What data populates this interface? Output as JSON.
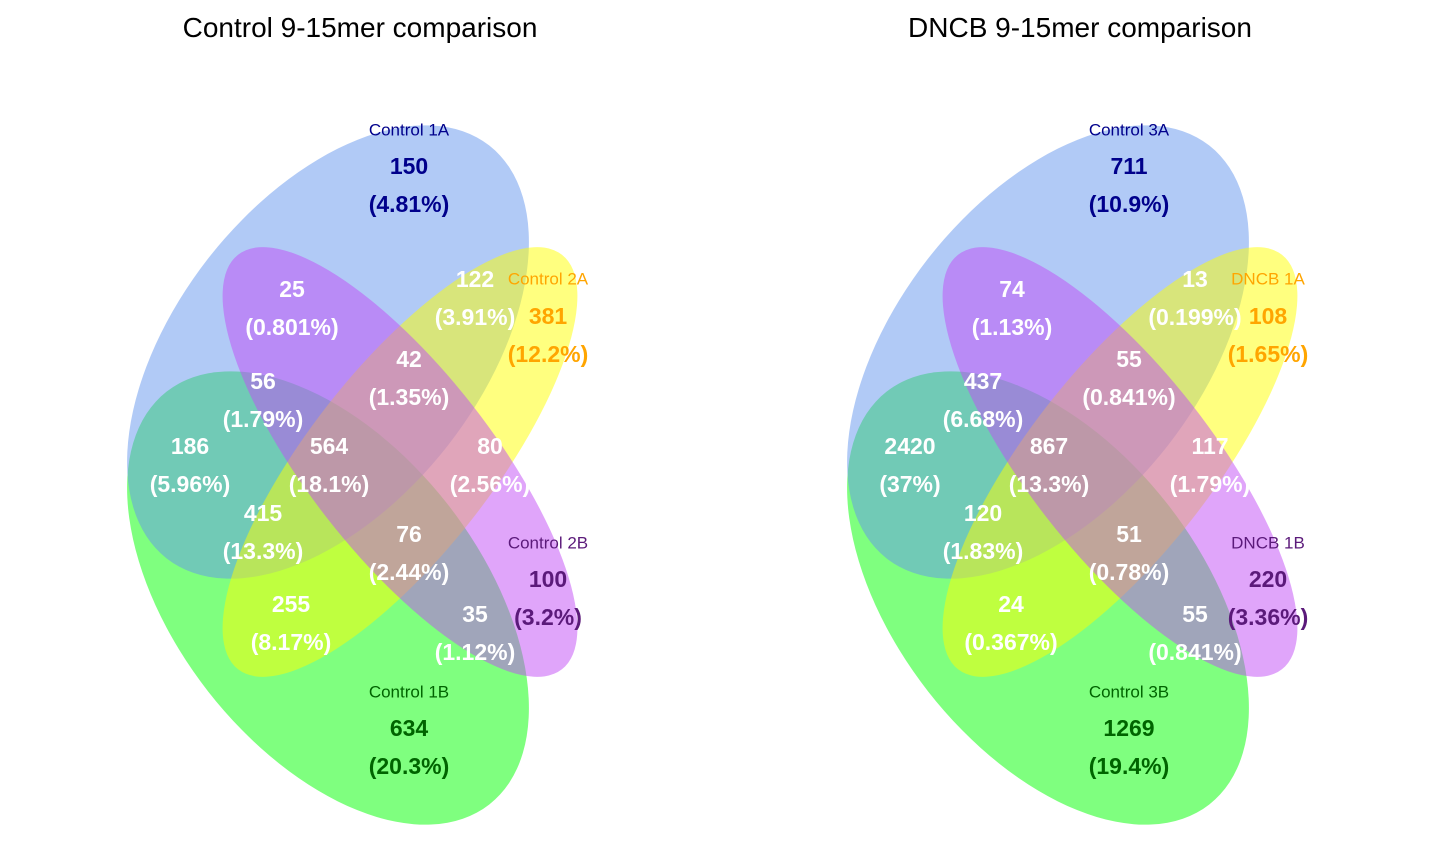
{
  "colors": {
    "set_top": "#6495ED",
    "set_right_top": "#FFFF00",
    "set_left_bottom": "#00FF00",
    "set_right_bottom": "#C14BF5",
    "label_top": "#00008B",
    "label_right_top": "#FFA500",
    "label_left_bottom": "#006400",
    "label_right_bottom": "#5B1A7A",
    "inner_text": "#FFFFFF"
  },
  "diagrams": [
    {
      "title": "Control 9-15mer comparison",
      "sets": {
        "top": "Control 1A",
        "right_top": "Control 2A",
        "left_bottom": "Control 1B",
        "right_bottom": "Control 2B"
      },
      "regions": {
        "only_top": [
          "150",
          "(4.81%)"
        ],
        "only_right_top": [
          "381",
          "(12.2%)"
        ],
        "only_left_bottom": [
          "634",
          "(20.3%)"
        ],
        "only_right_bottom": [
          "100",
          "(3.2%)"
        ],
        "purple_upper": [
          "25",
          "(0.801%)"
        ],
        "yellow_upper": [
          "122",
          "(3.91%)"
        ],
        "center_upper": [
          "42",
          "(1.35%)"
        ],
        "teal_only": [
          "186",
          "(5.96%)"
        ],
        "teal_purple": [
          "56",
          "(1.79%)"
        ],
        "center": [
          "564",
          "(18.1%)"
        ],
        "right_mid": [
          "80",
          "(2.56%)"
        ],
        "left_lower": [
          "415",
          "(13.3%)"
        ],
        "center_lower": [
          "76",
          "(2.44%)"
        ],
        "lime": [
          "255",
          "(8.17%)"
        ],
        "slate": [
          "35",
          "(1.12%)"
        ]
      }
    },
    {
      "title": "DNCB 9-15mer comparison",
      "sets": {
        "top": "Control 3A",
        "right_top": "DNCB 1A",
        "left_bottom": "Control 3B",
        "right_bottom": "DNCB 1B"
      },
      "regions": {
        "only_top": [
          "711",
          "(10.9%)"
        ],
        "only_right_top": [
          "108",
          "(1.65%)"
        ],
        "only_left_bottom": [
          "1269",
          "(19.4%)"
        ],
        "only_right_bottom": [
          "220",
          "(3.36%)"
        ],
        "purple_upper": [
          "74",
          "(1.13%)"
        ],
        "yellow_upper": [
          "13",
          "(0.199%)"
        ],
        "center_upper": [
          "55",
          "(0.841%)"
        ],
        "teal_only": [
          "2420",
          "(37%)"
        ],
        "teal_purple": [
          "437",
          "(6.68%)"
        ],
        "center": [
          "867",
          "(13.3%)"
        ],
        "right_mid": [
          "117",
          "(1.79%)"
        ],
        "left_lower": [
          "120",
          "(1.83%)"
        ],
        "center_lower": [
          "51",
          "(0.78%)"
        ],
        "lime": [
          "24",
          "(0.367%)"
        ],
        "slate": [
          "55",
          "(0.841%)"
        ]
      }
    }
  ]
}
